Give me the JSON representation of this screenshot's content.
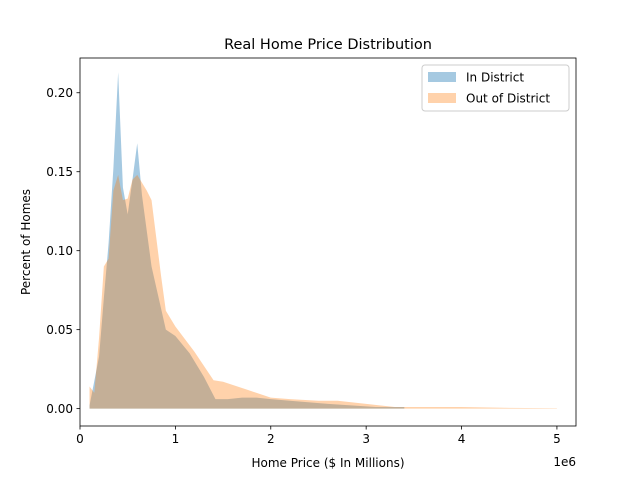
{
  "chart_data": {
    "type": "area",
    "title": "Real Home Price Distribution",
    "xlabel": "Home Price ($ In Millions)",
    "ylabel": "Percent of Homes",
    "x_offset_label": "1e6",
    "xlim": [
      0,
      5200000
    ],
    "ylim": [
      -0.011,
      0.222
    ],
    "xticks": [
      0,
      1000000,
      2000000,
      3000000,
      4000000,
      5000000
    ],
    "xtick_labels": [
      "0",
      "1",
      "2",
      "3",
      "4",
      "5"
    ],
    "yticks": [
      0.0,
      0.05,
      0.1,
      0.15,
      0.2
    ],
    "ytick_labels": [
      "0.00",
      "0.05",
      "0.10",
      "0.15",
      "0.20"
    ],
    "legend_position": "top-right",
    "series": [
      {
        "name": "In District",
        "color": "#1f77b4",
        "opacity": 0.4,
        "points": [
          [
            100000,
            0.002
          ],
          [
            200000,
            0.033
          ],
          [
            250000,
            0.07
          ],
          [
            300000,
            0.105
          ],
          [
            350000,
            0.152
          ],
          [
            400000,
            0.213
          ],
          [
            450000,
            0.14
          ],
          [
            500000,
            0.123
          ],
          [
            550000,
            0.145
          ],
          [
            600000,
            0.168
          ],
          [
            650000,
            0.135
          ],
          [
            750000,
            0.09
          ],
          [
            900000,
            0.05
          ],
          [
            1000000,
            0.046
          ],
          [
            1150000,
            0.035
          ],
          [
            1300000,
            0.02
          ],
          [
            1420000,
            0.006
          ],
          [
            1550000,
            0.006
          ],
          [
            1700000,
            0.007
          ],
          [
            1850000,
            0.007
          ],
          [
            2000000,
            0.006
          ],
          [
            2200000,
            0.005
          ],
          [
            2600000,
            0.003
          ],
          [
            3100000,
            0.001
          ],
          [
            3400000,
            0.001
          ]
        ]
      },
      {
        "name": "Out of District",
        "color": "#ff7f0e",
        "opacity": 0.35,
        "points": [
          [
            100000,
            0.014
          ],
          [
            150000,
            0.01
          ],
          [
            200000,
            0.045
          ],
          [
            250000,
            0.09
          ],
          [
            300000,
            0.095
          ],
          [
            350000,
            0.138
          ],
          [
            400000,
            0.148
          ],
          [
            450000,
            0.132
          ],
          [
            500000,
            0.133
          ],
          [
            550000,
            0.145
          ],
          [
            600000,
            0.148
          ],
          [
            700000,
            0.138
          ],
          [
            750000,
            0.132
          ],
          [
            850000,
            0.084
          ],
          [
            900000,
            0.062
          ],
          [
            1000000,
            0.052
          ],
          [
            1100000,
            0.044
          ],
          [
            1200000,
            0.036
          ],
          [
            1400000,
            0.018
          ],
          [
            1500000,
            0.017
          ],
          [
            1750000,
            0.012
          ],
          [
            2000000,
            0.007
          ],
          [
            2200000,
            0.006
          ],
          [
            2500000,
            0.005
          ],
          [
            2700000,
            0.005
          ],
          [
            3000000,
            0.003
          ],
          [
            3300000,
            0.001
          ],
          [
            3600000,
            0.001
          ],
          [
            4000000,
            0.001
          ],
          [
            4500000,
            0.0005
          ],
          [
            5000000,
            0.0002
          ]
        ]
      }
    ]
  }
}
